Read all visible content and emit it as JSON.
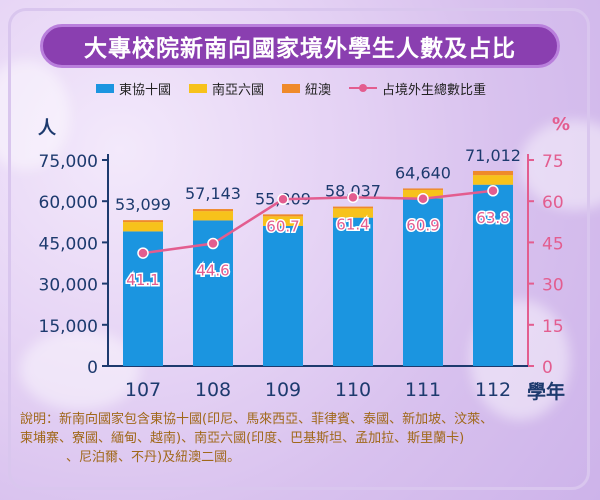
{
  "title": "大專校院新南向國家境外學生人數及占比",
  "legend": {
    "asean": "東協十國",
    "south_asia": "南亞六國",
    "nz_au": "紐澳",
    "share": "占境外生總數比重"
  },
  "units": {
    "left": "人",
    "right": "%",
    "x": "學年"
  },
  "note": {
    "line1": "說明：新南向國家包含東協十國(印尼、馬來西亞、菲律賓、泰國、新加坡、汶萊、",
    "line2": "柬埔寨、寮國、緬甸、越南)、南亞六國(印度、巴基斯坦、孟加拉、斯里蘭卡)",
    "line3": "、尼泊爾、不丹)及紐澳二國。"
  },
  "colors": {
    "asean": "#1b95e0",
    "south_asia": "#f7c21b",
    "nz_au": "#ef8a2a",
    "share": "#e35d8f"
  },
  "chart_data": {
    "type": "bar",
    "stacked": true,
    "categories": [
      "107",
      "108",
      "109",
      "110",
      "111",
      "112"
    ],
    "series": [
      {
        "name": "東協十國",
        "values": [
          49000,
          53000,
          51000,
          54000,
          61000,
          66000
        ]
      },
      {
        "name": "南亞六國",
        "values": [
          3400,
          3400,
          3500,
          3400,
          3100,
          3500
        ]
      },
      {
        "name": "紐澳",
        "values": [
          699,
          743,
          709,
          637,
          540,
          1512
        ]
      }
    ],
    "totals": [
      53099,
      57143,
      55209,
      58037,
      64640,
      71012
    ],
    "total_labels": [
      "53,099",
      "57,143",
      "55,209",
      "58,037",
      "64,640",
      "71,012"
    ],
    "line_series": {
      "name": "占境外生總數比重",
      "values": [
        41.1,
        44.6,
        60.7,
        61.4,
        60.9,
        63.8
      ],
      "axis": "right"
    },
    "yticks_left": [
      0,
      15000,
      30000,
      45000,
      60000,
      75000
    ],
    "yticks_left_labels": [
      "0",
      "15,000",
      "30,000",
      "45,000",
      "60,000",
      "75,000"
    ],
    "ylim_left": [
      0,
      75000
    ],
    "yticks_right": [
      0,
      15,
      30,
      45,
      60,
      75
    ],
    "ylim_right": [
      0,
      75
    ],
    "xlabel": "學年",
    "ylabel_left": "人",
    "ylabel_right": "%"
  }
}
